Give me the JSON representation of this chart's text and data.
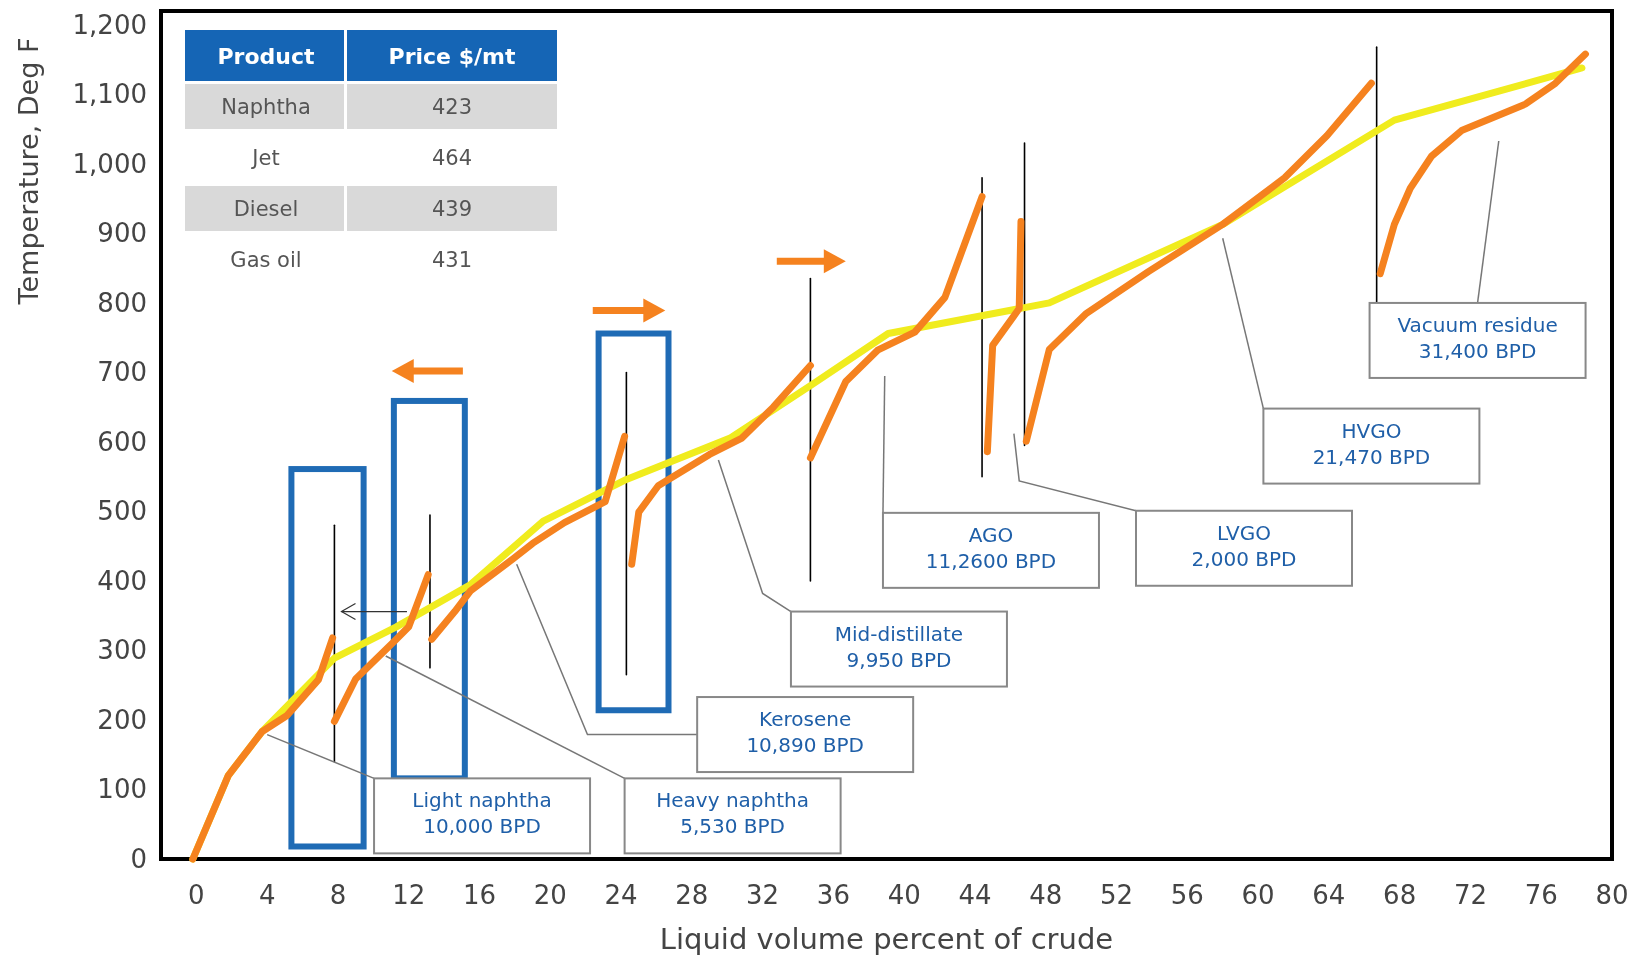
{
  "chart_data": [
    {
      "type": "line",
      "xlabel": "Liquid volume percent of crude",
      "ylabel": "Temperature, Deg F",
      "xlim": [
        -2,
        80
      ],
      "ylim": [
        0,
        1220
      ],
      "xticks": [
        0,
        4,
        8,
        12,
        16,
        20,
        24,
        28,
        32,
        36,
        40,
        44,
        48,
        52,
        56,
        60,
        64,
        68,
        72,
        76,
        80
      ],
      "yticks": [
        {
          "value": 0,
          "label": "0"
        },
        {
          "value": 100,
          "label": "100"
        },
        {
          "value": 200,
          "label": "200"
        },
        {
          "value": 300,
          "label": "300"
        },
        {
          "value": 400,
          "label": "400"
        },
        {
          "value": 500,
          "label": "500"
        },
        {
          "value": 600,
          "label": "600"
        },
        {
          "value": 700,
          "label": "700"
        },
        {
          "value": 800,
          "label": "800"
        },
        {
          "value": 900,
          "label": "900"
        },
        {
          "value": 1000,
          "label": "1,000"
        },
        {
          "value": 1100,
          "label": "1,100"
        },
        {
          "value": 1200,
          "label": "1,200"
        }
      ],
      "grid": false,
      "marker": "none",
      "line_style": "solid",
      "series": [
        {
          "color": "#000000",
          "x": [
            7.8,
            7.8
          ],
          "values": [
            140,
            480
          ]
        },
        {
          "color": "#000000",
          "x": [
            13.2,
            13.2
          ],
          "values": [
            275,
            495
          ]
        },
        {
          "color": "#000000",
          "x": [
            24.3,
            24.3
          ],
          "values": [
            265,
            700
          ]
        },
        {
          "color": "#000000",
          "x": [
            34.7,
            34.7
          ],
          "values": [
            400,
            835
          ]
        },
        {
          "color": "#000000",
          "x": [
            44.4,
            44.4
          ],
          "values": [
            550,
            980
          ]
        },
        {
          "color": "#000000",
          "x": [
            46.8,
            46.8
          ],
          "values": [
            595,
            1030
          ]
        },
        {
          "color": "#000000",
          "x": [
            66.7,
            66.7
          ],
          "values": [
            800,
            1168
          ]
        },
        {
          "color": "#f0ec1e",
          "x": [
            -0.2,
            1.8,
            3.7,
            7.8,
            11.3,
            15.5,
            19.6,
            24.3,
            30.2,
            34.7,
            39.1,
            48.2,
            58.0,
            67.7,
            78.3
          ],
          "values": [
            0,
            120,
            183,
            289,
            334,
            395,
            486,
            546,
            606,
            681,
            756,
            800,
            913,
            1063,
            1138
          ]
        },
        {
          "color": "#f5821f",
          "x": [
            -0.2,
            1.8,
            3.7,
            5.1,
            6.9,
            7.7
          ],
          "values": [
            0,
            120,
            183,
            206,
            258,
            318
          ]
        },
        {
          "color": "#f5821f",
          "x": [
            7.8,
            9.0,
            11.1,
            12.0,
            13.1
          ],
          "values": [
            198,
            259,
            311,
            334,
            409
          ]
        },
        {
          "color": "#f5821f",
          "x": [
            13.3,
            14.6,
            15.5,
            17.9,
            19.0,
            20.8,
            23.1,
            24.2
          ],
          "values": [
            316,
            356,
            386,
            432,
            454,
            484,
            514,
            608
          ]
        },
        {
          "color": "#f5821f",
          "x": [
            24.6,
            25.0,
            26.1,
            29.0,
            30.8,
            32.6,
            34.7
          ],
          "values": [
            424,
            499,
            537,
            582,
            605,
            650,
            710
          ]
        },
        {
          "color": "#f5821f",
          "x": [
            34.7,
            36.7,
            38.5,
            40.6,
            42.3,
            44.4
          ],
          "values": [
            577,
            687,
            732,
            758,
            808,
            953
          ]
        },
        {
          "color": "#f5821f",
          "x": [
            44.7,
            45.0,
            46.5,
            46.6
          ],
          "values": [
            586,
            739,
            792,
            917
          ]
        },
        {
          "color": "#f5821f",
          "x": [
            46.9,
            48.2,
            50.3,
            53.8,
            58.0,
            61.5,
            63.9,
            66.4
          ],
          "values": [
            601,
            733,
            785,
            845,
            913,
            980,
            1041,
            1116
          ]
        },
        {
          "color": "#f5821f",
          "x": [
            66.9,
            67.7,
            68.6,
            69.8,
            71.5,
            75.1,
            76.8,
            78.5
          ],
          "values": [
            842,
            913,
            965,
            1011,
            1048,
            1086,
            1116,
            1158
          ]
        }
      ],
      "annotations": [
        "Light naphtha\n10,000 BPD",
        "Heavy naphtha\n5,530 BPD",
        "Kerosene\n10,890 BPD",
        "Mid-distillate\n9,950 BPD",
        "AGO\n11,2600 BPD",
        "LVGO\n2,000 BPD",
        "HVGO\n21,470 BPD",
        "Vacuum residue\n31,400 BPD"
      ]
    },
    {
      "type": "other",
      "xlabel": "Product",
      "ylabel": "Price $/mt",
      "categories": [
        "Naphtha",
        "Jet",
        "Diesel",
        "Gas oil"
      ],
      "values": [
        423,
        464,
        439,
        431
      ],
      "data_labels": true
    }
  ]
}
